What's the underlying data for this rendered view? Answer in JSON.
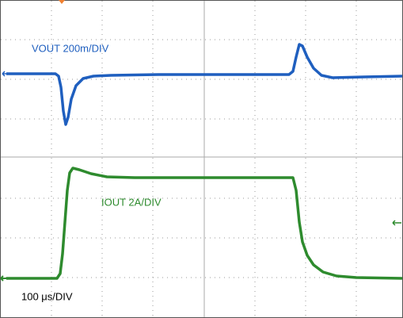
{
  "labels": {
    "vout": "VOUT 200m/DIV",
    "iout": "IOUT 2A/DIV",
    "timebase": "100 μs/DIV"
  }
}
